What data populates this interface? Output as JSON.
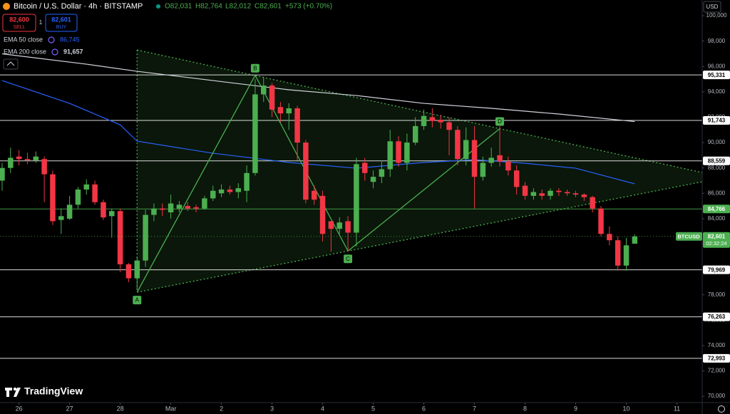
{
  "chart_data": {
    "type": "candlestick",
    "title": "Bitcoin / U.S. Dollar · 4h · BITSTAMP",
    "ohlc": [
      "O82,031",
      "H82,764",
      "L82,012",
      "C82,601",
      "+573 (+0.70%)"
    ],
    "sell": {
      "price": "82,600",
      "label": "SELL",
      "color": "#f23645"
    },
    "spread": "1",
    "buy": {
      "price": "82,601",
      "label": "BUY",
      "color": "#2962ff"
    },
    "currency": "USD",
    "symbol": "BTCUSD",
    "countdown": "02:32:24",
    "brand": "TradingView",
    "up_color": "#4caf50",
    "down_color": "#f23645",
    "ylim": [
      69500,
      101240
    ],
    "yticks": [
      {
        "value": 70000,
        "label": "70,000"
      },
      {
        "value": 72000,
        "label": "72,000"
      },
      {
        "value": 74000,
        "label": "74,000"
      },
      {
        "value": 76000,
        "label": "76,000"
      },
      {
        "value": 78000,
        "label": "78,000"
      },
      {
        "value": 80000,
        "label": "80,000"
      },
      {
        "value": 82000,
        "label": "82,000"
      },
      {
        "value": 84000,
        "label": "84,000"
      },
      {
        "value": 86000,
        "label": "86,000"
      },
      {
        "value": 88000,
        "label": "88,000"
      },
      {
        "value": 90000,
        "label": "90,000"
      },
      {
        "value": 92000,
        "label": "92,000"
      },
      {
        "value": 94000,
        "label": "94,000"
      },
      {
        "value": 96000,
        "label": "96,000"
      },
      {
        "value": 98000,
        "label": "98,000"
      },
      {
        "value": 100000,
        "label": "100,000"
      }
    ],
    "xlim": [
      -0.25,
      83
    ],
    "xticks": [
      {
        "value": 2,
        "label": "26"
      },
      {
        "value": 8,
        "label": "27"
      },
      {
        "value": 14,
        "label": "28"
      },
      {
        "value": 20,
        "label": "Mar"
      },
      {
        "value": 26,
        "label": "2"
      },
      {
        "value": 32,
        "label": "3"
      },
      {
        "value": 38,
        "label": "4"
      },
      {
        "value": 44,
        "label": "5"
      },
      {
        "value": 50,
        "label": "6"
      },
      {
        "value": 56,
        "label": "7"
      },
      {
        "value": 62,
        "label": "8"
      },
      {
        "value": 68,
        "label": "9"
      },
      {
        "value": 74,
        "label": "10"
      },
      {
        "value": 80,
        "label": "11"
      }
    ],
    "open": [
      87000,
      88000,
      88900,
      88700,
      88600,
      88700,
      87500,
      83900,
      84000,
      85100,
      86300,
      86700,
      85300,
      84200,
      84600,
      80400,
      79300,
      80700,
      84300,
      84800,
      84500,
      84800,
      85000,
      84900,
      84800,
      85600,
      86000,
      86300,
      86100,
      86200,
      87600,
      93800,
      94500,
      92800,
      92300,
      92700,
      90000,
      86200,
      85800,
      83800,
      83200,
      83800,
      82900,
      88400,
      86900,
      87300,
      87900,
      90100,
      88400,
      90000,
      91300,
      92000,
      91800,
      91600,
      91000,
      88700,
      90200,
      87300,
      88400,
      89000,
      88500,
      87800,
      86600,
      85800,
      86000,
      85800,
      86200,
      86100,
      86000,
      85900,
      85700,
      84800,
      82800,
      82300,
      80300,
      82031
    ],
    "high": [
      88400,
      89600,
      89400,
      89200,
      89300,
      88900,
      87800,
      84800,
      85800,
      86500,
      87100,
      87000,
      85500,
      84800,
      84800,
      80500,
      81000,
      84700,
      85200,
      85200,
      85900,
      85400,
      85300,
      85100,
      85800,
      86600,
      86700,
      86600,
      86800,
      88200,
      95000,
      95200,
      94700,
      93200,
      93100,
      92900,
      90200,
      86600,
      86200,
      83500,
      84100,
      84200,
      88800,
      88800,
      87800,
      88600,
      91000,
      90500,
      90700,
      92000,
      92600,
      92700,
      92200,
      92000,
      91300,
      91200,
      91300,
      88900,
      89600,
      91300,
      88900,
      88200,
      86900,
      86400,
      86300,
      86400,
      86400,
      86300,
      86200,
      86000,
      85800,
      85000,
      83400,
      82600,
      82500,
      82764
    ],
    "low": [
      86200,
      87600,
      88200,
      88300,
      88400,
      85300,
      83500,
      82800,
      83900,
      84800,
      85900,
      85100,
      83900,
      82500,
      79800,
      79000,
      78400,
      80200,
      83800,
      84200,
      84000,
      84500,
      84600,
      84500,
      84700,
      85400,
      85700,
      85900,
      85600,
      85300,
      87400,
      93200,
      92000,
      91600,
      91000,
      88600,
      85200,
      85100,
      82200,
      81400,
      82800,
      81400,
      81800,
      87000,
      86400,
      86800,
      87300,
      88100,
      87800,
      89800,
      91000,
      91200,
      91100,
      89000,
      88200,
      88200,
      84800,
      87000,
      88100,
      88100,
      87400,
      85900,
      85500,
      85500,
      85500,
      85500,
      85800,
      85800,
      85700,
      85400,
      84500,
      82600,
      81900,
      79900,
      79900,
      82012
    ],
    "close": [
      88000,
      88800,
      88700,
      88600,
      88900,
      87500,
      83800,
      84200,
      85100,
      86300,
      86700,
      85300,
      84100,
      84600,
      80400,
      79300,
      80700,
      84300,
      84800,
      84700,
      85200,
      85100,
      84800,
      84800,
      85600,
      86200,
      86300,
      86100,
      86400,
      87600,
      93800,
      94500,
      92600,
      92300,
      92700,
      90000,
      85500,
      85500,
      82800,
      83200,
      83700,
      82900,
      88300,
      87600,
      87300,
      87900,
      90100,
      88400,
      90000,
      91300,
      92100,
      91700,
      91600,
      91000,
      88700,
      90200,
      87300,
      88400,
      88800,
      88500,
      87800,
      86500,
      85800,
      86100,
      85800,
      86200,
      86100,
      86000,
      85900,
      85700,
      84800,
      82800,
      82300,
      80300,
      81900,
      82601
    ],
    "indicators": [
      {
        "name": "EMA 50 close",
        "value_label": "86,745",
        "color": "#2962ff",
        "x": [
          0,
          8,
          14,
          16,
          25,
          34,
          42,
          50,
          56,
          62,
          68,
          75
        ],
        "values": [
          94890,
          93090,
          91400,
          90110,
          89160,
          88430,
          87980,
          88430,
          88650,
          88370,
          87980,
          86745
        ]
      },
      {
        "name": "EMA 200 close",
        "value_label": "91,657",
        "color": "#d1d4dc",
        "x": [
          0,
          10,
          16,
          25,
          34,
          42,
          50,
          58,
          66,
          75
        ],
        "values": [
          97000,
          96180,
          95620,
          94890,
          94160,
          93710,
          93090,
          92700,
          92250,
          91657
        ]
      }
    ],
    "levels": [
      {
        "value": 95331,
        "label": "95,331",
        "color": "#ffffff"
      },
      {
        "value": 91743,
        "label": "91,743",
        "color": "#ffffff"
      },
      {
        "value": 88559,
        "label": "88,559",
        "color": "#ffffff"
      },
      {
        "value": 84766,
        "label": "84,766",
        "color": "#4caf50"
      },
      {
        "value": 79969,
        "label": "79,969",
        "color": "#ffffff"
      },
      {
        "value": 76263,
        "label": "76,263",
        "color": "#ffffff"
      },
      {
        "value": 72993,
        "label": "72,993",
        "color": "#ffffff"
      }
    ],
    "last_price": {
      "value": 82601,
      "label": "82,601",
      "color": "#4caf50"
    },
    "pattern": {
      "color": "#4caf50",
      "points": [
        {
          "name": "A",
          "x": 16,
          "y": 78200
        },
        {
          "name": "B",
          "x": 30,
          "y": 95300
        },
        {
          "name": "C",
          "x": 41,
          "y": 81450
        },
        {
          "name": "D",
          "x": 59,
          "y": 91100
        }
      ],
      "upper": {
        "x": [
          16,
          83
        ],
        "y": [
          97300,
          87640
        ]
      },
      "lower": {
        "x": [
          16,
          83
        ],
        "y": [
          78200,
          86910
        ]
      }
    }
  }
}
